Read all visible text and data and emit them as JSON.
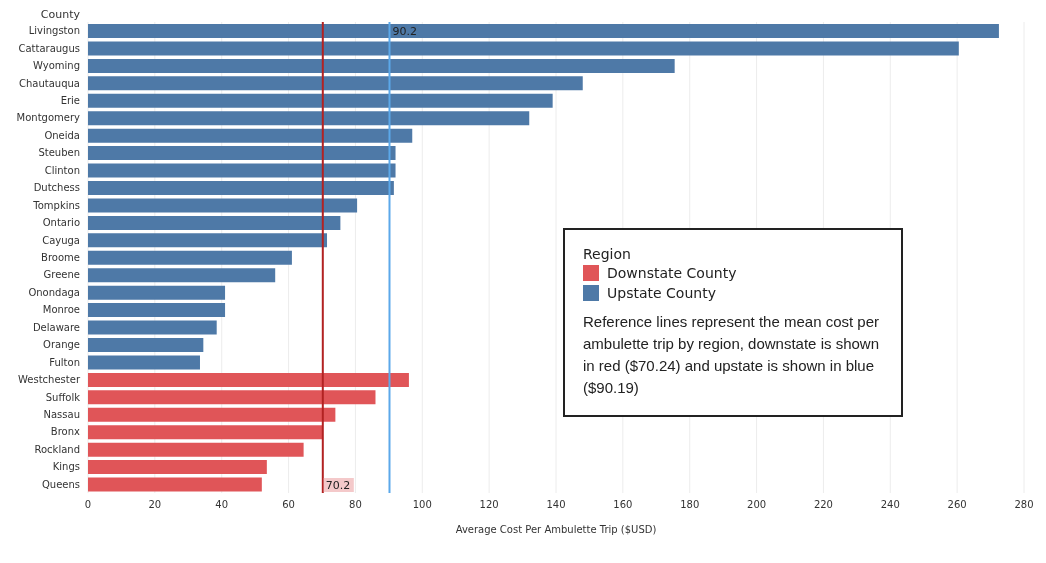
{
  "chart_data": {
    "type": "bar",
    "orientation": "horizontal",
    "ylabel": "County",
    "xlabel": "Average Cost Per Ambulette Trip ($USD)",
    "legend_title": "Region",
    "legend": "right",
    "grid": "x",
    "categories": [
      "Livingston",
      "Cattaraugus",
      "Wyoming",
      "Chautauqua",
      "Erie",
      "Montgomery",
      "Oneida",
      "Steuben",
      "Clinton",
      "Dutchess",
      "Tompkins",
      "Ontario",
      "Cayuga",
      "Broome",
      "Greene",
      "Onondaga",
      "Monroe",
      "Delaware",
      "Orange",
      "Fulton",
      "Westchester",
      "Suffolk",
      "Nassau",
      "Bronx",
      "Rockland",
      "Kings",
      "Queens"
    ],
    "series": [
      {
        "name": "Downstate County",
        "color": "#e05558",
        "values": [
          null,
          null,
          null,
          null,
          null,
          null,
          null,
          null,
          null,
          null,
          null,
          null,
          null,
          null,
          null,
          null,
          null,
          null,
          null,
          null,
          96,
          86,
          74,
          70,
          64.5,
          53.5,
          52
        ]
      },
      {
        "name": "Upstate County",
        "color": "#4e79a7",
        "values": [
          272.5,
          260.5,
          175.5,
          148,
          139,
          132,
          97,
          92,
          92,
          91.5,
          80.5,
          75.5,
          71.5,
          61,
          56,
          41,
          41,
          38.5,
          34.5,
          33.5,
          null,
          null,
          null,
          null,
          null,
          null,
          null
        ]
      }
    ],
    "xlim": [
      0,
      280
    ],
    "xticks": [
      0,
      20,
      40,
      60,
      80,
      100,
      120,
      140,
      160,
      180,
      200,
      220,
      240,
      260,
      280
    ],
    "ref_lines": [
      {
        "axis": "x",
        "value": 70.24,
        "label": "70.2",
        "color": "#b22222"
      },
      {
        "axis": "x",
        "value": 90.19,
        "label": "90.2",
        "color": "#5ba8ea"
      }
    ],
    "annotations": [
      "Reference lines represent the mean cost per ambulette trip by region, downstate is shown in red ($70.24) and upstate is shown in blue ($90.19)"
    ]
  }
}
